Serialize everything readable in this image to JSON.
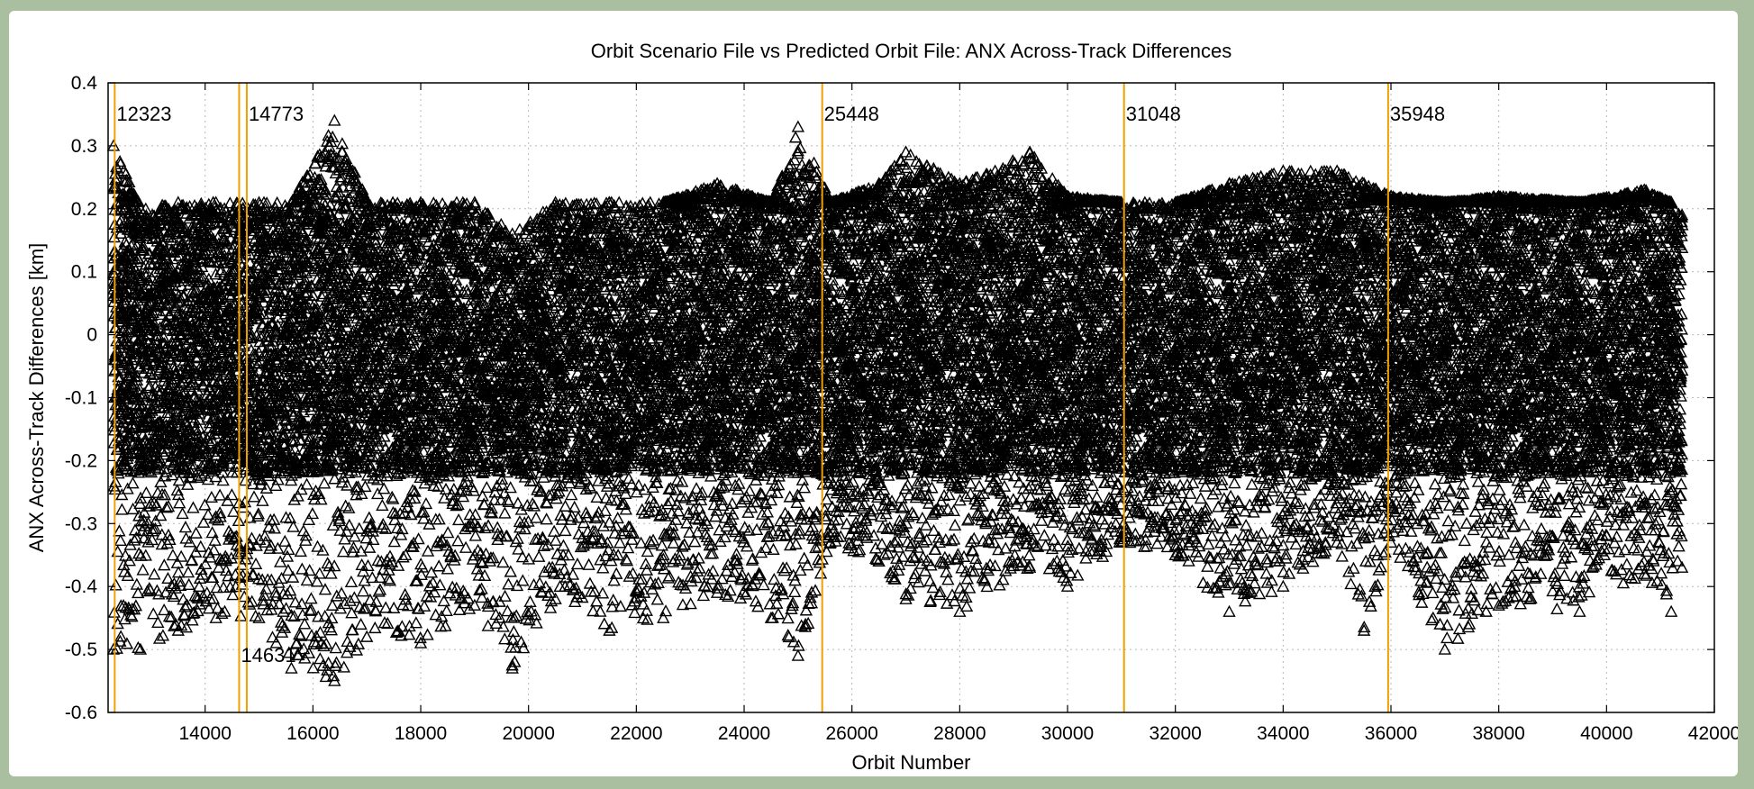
{
  "chart_data": {
    "type": "scatter",
    "title": "Orbit Scenario File vs Predicted Orbit File: ANX Across-Track Differences",
    "xlabel": "Orbit Number",
    "ylabel": "ANX Across-Track Differences [km]",
    "xlim": [
      12200,
      42000
    ],
    "ylim": [
      -0.6,
      0.4
    ],
    "xticks": [
      14000,
      16000,
      18000,
      20000,
      22000,
      24000,
      26000,
      28000,
      30000,
      32000,
      34000,
      36000,
      38000,
      40000,
      42000
    ],
    "xtick_labels": [
      "14000",
      "16000",
      "18000",
      "20000",
      "22000",
      "24000",
      "26000",
      "28000",
      "30000",
      "32000",
      "34000",
      "36000",
      "38000",
      "40000",
      "42000"
    ],
    "yticks": [
      -0.6,
      -0.5,
      -0.4,
      -0.3,
      -0.2,
      -0.1,
      0,
      0.1,
      0.2,
      0.3,
      0.4
    ],
    "ytick_labels": [
      "-0.6",
      "-0.5",
      "-0.4",
      "-0.3",
      "-0.2",
      "-0.1",
      "0",
      "0.1",
      "0.2",
      "0.3",
      "0.4"
    ],
    "grid": true,
    "marker": "open-triangle",
    "marker_color": "#000000",
    "vline_color": "#f0a000",
    "vertical_lines": [
      {
        "x": 12323,
        "label": "12323",
        "label_y": 0.35
      },
      {
        "x": 14631,
        "label": "14631",
        "label_y": -0.51
      },
      {
        "x": 14773,
        "label": "14773",
        "label_y": 0.35
      },
      {
        "x": 25448,
        "label": "25448",
        "label_y": 0.35
      },
      {
        "x": 31048,
        "label": "31048",
        "label_y": 0.35
      },
      {
        "x": 35948,
        "label": "35948",
        "label_y": 0.35
      }
    ],
    "envelope": [
      {
        "x": 12300,
        "hi": 0.3,
        "lo": -0.5
      },
      {
        "x": 12800,
        "hi": 0.2,
        "lo": -0.5
      },
      {
        "x": 13500,
        "hi": 0.21,
        "lo": -0.47
      },
      {
        "x": 14200,
        "hi": 0.21,
        "lo": -0.45
      },
      {
        "x": 15000,
        "hi": 0.21,
        "lo": -0.45
      },
      {
        "x": 15600,
        "hi": 0.21,
        "lo": -0.53
      },
      {
        "x": 16400,
        "hi": 0.34,
        "lo": -0.55
      },
      {
        "x": 17000,
        "hi": 0.21,
        "lo": -0.48
      },
      {
        "x": 18000,
        "hi": 0.21,
        "lo": -0.49
      },
      {
        "x": 19000,
        "hi": 0.21,
        "lo": -0.43
      },
      {
        "x": 19700,
        "hi": 0.16,
        "lo": -0.53
      },
      {
        "x": 20500,
        "hi": 0.21,
        "lo": -0.42
      },
      {
        "x": 21500,
        "hi": 0.21,
        "lo": -0.47
      },
      {
        "x": 22500,
        "hi": 0.21,
        "lo": -0.45
      },
      {
        "x": 23500,
        "hi": 0.24,
        "lo": -0.41
      },
      {
        "x": 24500,
        "hi": 0.21,
        "lo": -0.45
      },
      {
        "x": 25000,
        "hi": 0.33,
        "lo": -0.51
      },
      {
        "x": 25600,
        "hi": 0.21,
        "lo": -0.33
      },
      {
        "x": 26500,
        "hi": 0.24,
        "lo": -0.36
      },
      {
        "x": 27000,
        "hi": 0.29,
        "lo": -0.42
      },
      {
        "x": 28000,
        "hi": 0.24,
        "lo": -0.44
      },
      {
        "x": 29300,
        "hi": 0.29,
        "lo": -0.37
      },
      {
        "x": 30000,
        "hi": 0.22,
        "lo": -0.4
      },
      {
        "x": 31000,
        "hi": 0.21,
        "lo": -0.33
      },
      {
        "x": 32000,
        "hi": 0.21,
        "lo": -0.35
      },
      {
        "x": 33000,
        "hi": 0.24,
        "lo": -0.44
      },
      {
        "x": 34000,
        "hi": 0.26,
        "lo": -0.4
      },
      {
        "x": 35000,
        "hi": 0.26,
        "lo": -0.33
      },
      {
        "x": 35500,
        "hi": 0.24,
        "lo": -0.47
      },
      {
        "x": 36000,
        "hi": 0.22,
        "lo": -0.33
      },
      {
        "x": 37000,
        "hi": 0.21,
        "lo": -0.5
      },
      {
        "x": 38000,
        "hi": 0.22,
        "lo": -0.43
      },
      {
        "x": 39500,
        "hi": 0.21,
        "lo": -0.44
      },
      {
        "x": 40700,
        "hi": 0.23,
        "lo": -0.38
      },
      {
        "x": 41200,
        "hi": 0.21,
        "lo": -0.44
      },
      {
        "x": 41400,
        "hi": 0.19,
        "lo": -0.37
      }
    ]
  }
}
